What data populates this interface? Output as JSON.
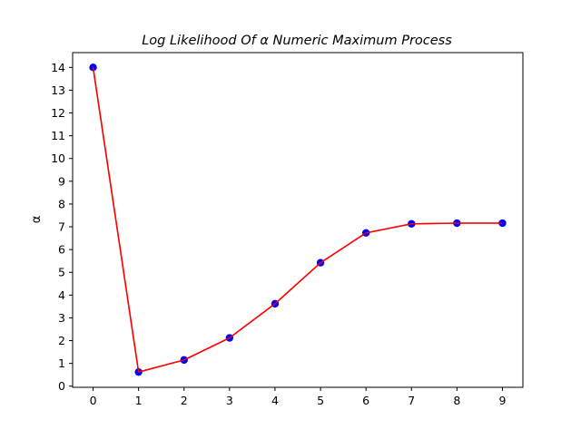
{
  "chart_data": {
    "type": "line",
    "title": "Log   Likelihood   Of   α   Numeric   Maximum   Process",
    "xlabel": "",
    "ylabel": "α",
    "x": [
      0,
      1,
      2,
      3,
      4,
      5,
      6,
      7,
      8,
      9
    ],
    "series": [
      {
        "values": [
          14.0,
          0.62,
          1.15,
          2.12,
          3.62,
          5.42,
          6.73,
          7.13,
          7.16,
          7.16
        ],
        "line_color": "#ff0000",
        "marker_color": "#0000ff"
      }
    ],
    "xlim": [
      -0.45,
      9.45
    ],
    "ylim": [
      -0.05,
      14.65
    ],
    "x_ticks": [
      0,
      1,
      2,
      3,
      4,
      5,
      6,
      7,
      8,
      9
    ],
    "y_ticks": [
      0,
      1,
      2,
      3,
      4,
      5,
      6,
      7,
      8,
      9,
      10,
      11,
      12,
      13,
      14
    ],
    "grid": false,
    "legend": false
  }
}
